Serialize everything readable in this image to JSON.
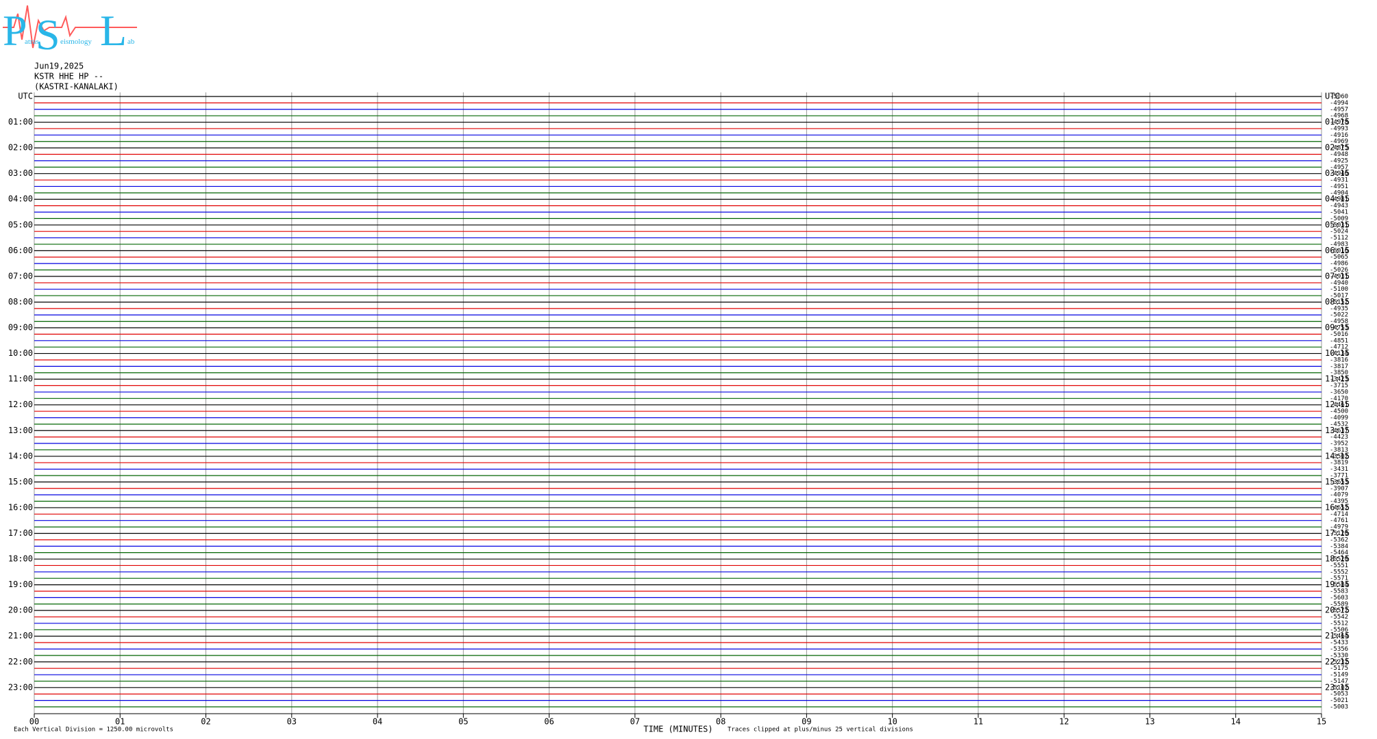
{
  "chart_data": {
    "type": "helicorder",
    "logo": {
      "letters": [
        "P",
        "S",
        "L"
      ],
      "words": [
        "atras",
        "eismology",
        "ab"
      ]
    },
    "date": "Jun19,2025",
    "station": "KSTR HHE HP --",
    "location": "(KASTRI-KANALAKI)",
    "left_labels": [
      "UTC",
      "01:00",
      "02:00",
      "03:00",
      "04:00",
      "05:00",
      "06:00",
      "07:00",
      "08:00",
      "09:00",
      "10:00",
      "11:00",
      "12:00",
      "13:00",
      "14:00",
      "15:00",
      "16:00",
      "17:00",
      "18:00",
      "19:00",
      "20:00",
      "21:00",
      "22:00",
      "23:00"
    ],
    "right_labels": [
      "UTC",
      "01:15",
      "02:15",
      "03:15",
      "04:15",
      "05:15",
      "06:15",
      "07:15",
      "08:15",
      "09:15",
      "10:15",
      "11:15",
      "12:15",
      "13:15",
      "14:15",
      "15:15",
      "16:15",
      "17:15",
      "18:15",
      "19:15",
      "20:15",
      "21:15",
      "22:15",
      "23:15"
    ],
    "trace_labels": [
      -5060,
      -4994,
      -4957,
      -4968,
      -4978,
      -4993,
      -4916,
      -4969,
      -4875,
      -4948,
      -4925,
      -4957,
      -4946,
      -4931,
      -4951,
      -4904,
      -4981,
      -4943,
      -5041,
      -5009,
      -5031,
      -5024,
      -5112,
      -4983,
      -5016,
      -5065,
      -4986,
      -5026,
      -4931,
      -4940,
      -5100,
      -5017,
      -5152,
      -4935,
      -5022,
      -4958,
      -4753,
      -5016,
      -4851,
      -4712,
      -4134,
      -3816,
      -3817,
      -3850,
      -3423,
      -3715,
      -3650,
      -4170,
      -4461,
      -4500,
      -4099,
      -4532,
      -4637,
      -4423,
      -3952,
      -3813,
      -3502,
      -3819,
      -3431,
      -3771,
      -3653,
      -3907,
      -4079,
      -4395,
      -4652,
      -4714,
      -4761,
      -4979,
      -5120,
      -5362,
      -5384,
      -5464,
      -5520,
      -5551,
      -5552,
      -5571,
      -5584,
      -5583,
      -5603,
      -5589,
      -5572,
      -5542,
      -5512,
      -5506,
      -5464,
      -5433,
      -5356,
      -5330,
      -5232,
      -5175,
      -5149,
      -5147,
      -5102,
      -5053,
      -5021,
      -5003
    ],
    "trace_colors": [
      "#000000",
      "#e00000",
      "#0000e0",
      "#006400"
    ],
    "xlim": [
      0,
      15
    ],
    "xticks": [
      {
        "value": 0,
        "label": "00"
      },
      {
        "value": 1,
        "label": "01"
      },
      {
        "value": 2,
        "label": "02"
      },
      {
        "value": 3,
        "label": "03"
      },
      {
        "value": 4,
        "label": "04"
      },
      {
        "value": 5,
        "label": "05"
      },
      {
        "value": 6,
        "label": "06"
      },
      {
        "value": 7,
        "label": "07"
      },
      {
        "value": 8,
        "label": "08"
      },
      {
        "value": 9,
        "label": "09"
      },
      {
        "value": 10,
        "label": "10"
      },
      {
        "value": 11,
        "label": "11"
      },
      {
        "value": 12,
        "label": "12"
      },
      {
        "value": 13,
        "label": "13"
      },
      {
        "value": 14,
        "label": "14"
      },
      {
        "value": 15,
        "label": "15"
      }
    ],
    "x_label": "TIME (MINUTES)",
    "scale_note": "Each Vertical Division = 1250.00 microvolts",
    "clip_note": "Traces clipped at plus/minus 25 vertical divisions",
    "grid": true
  }
}
